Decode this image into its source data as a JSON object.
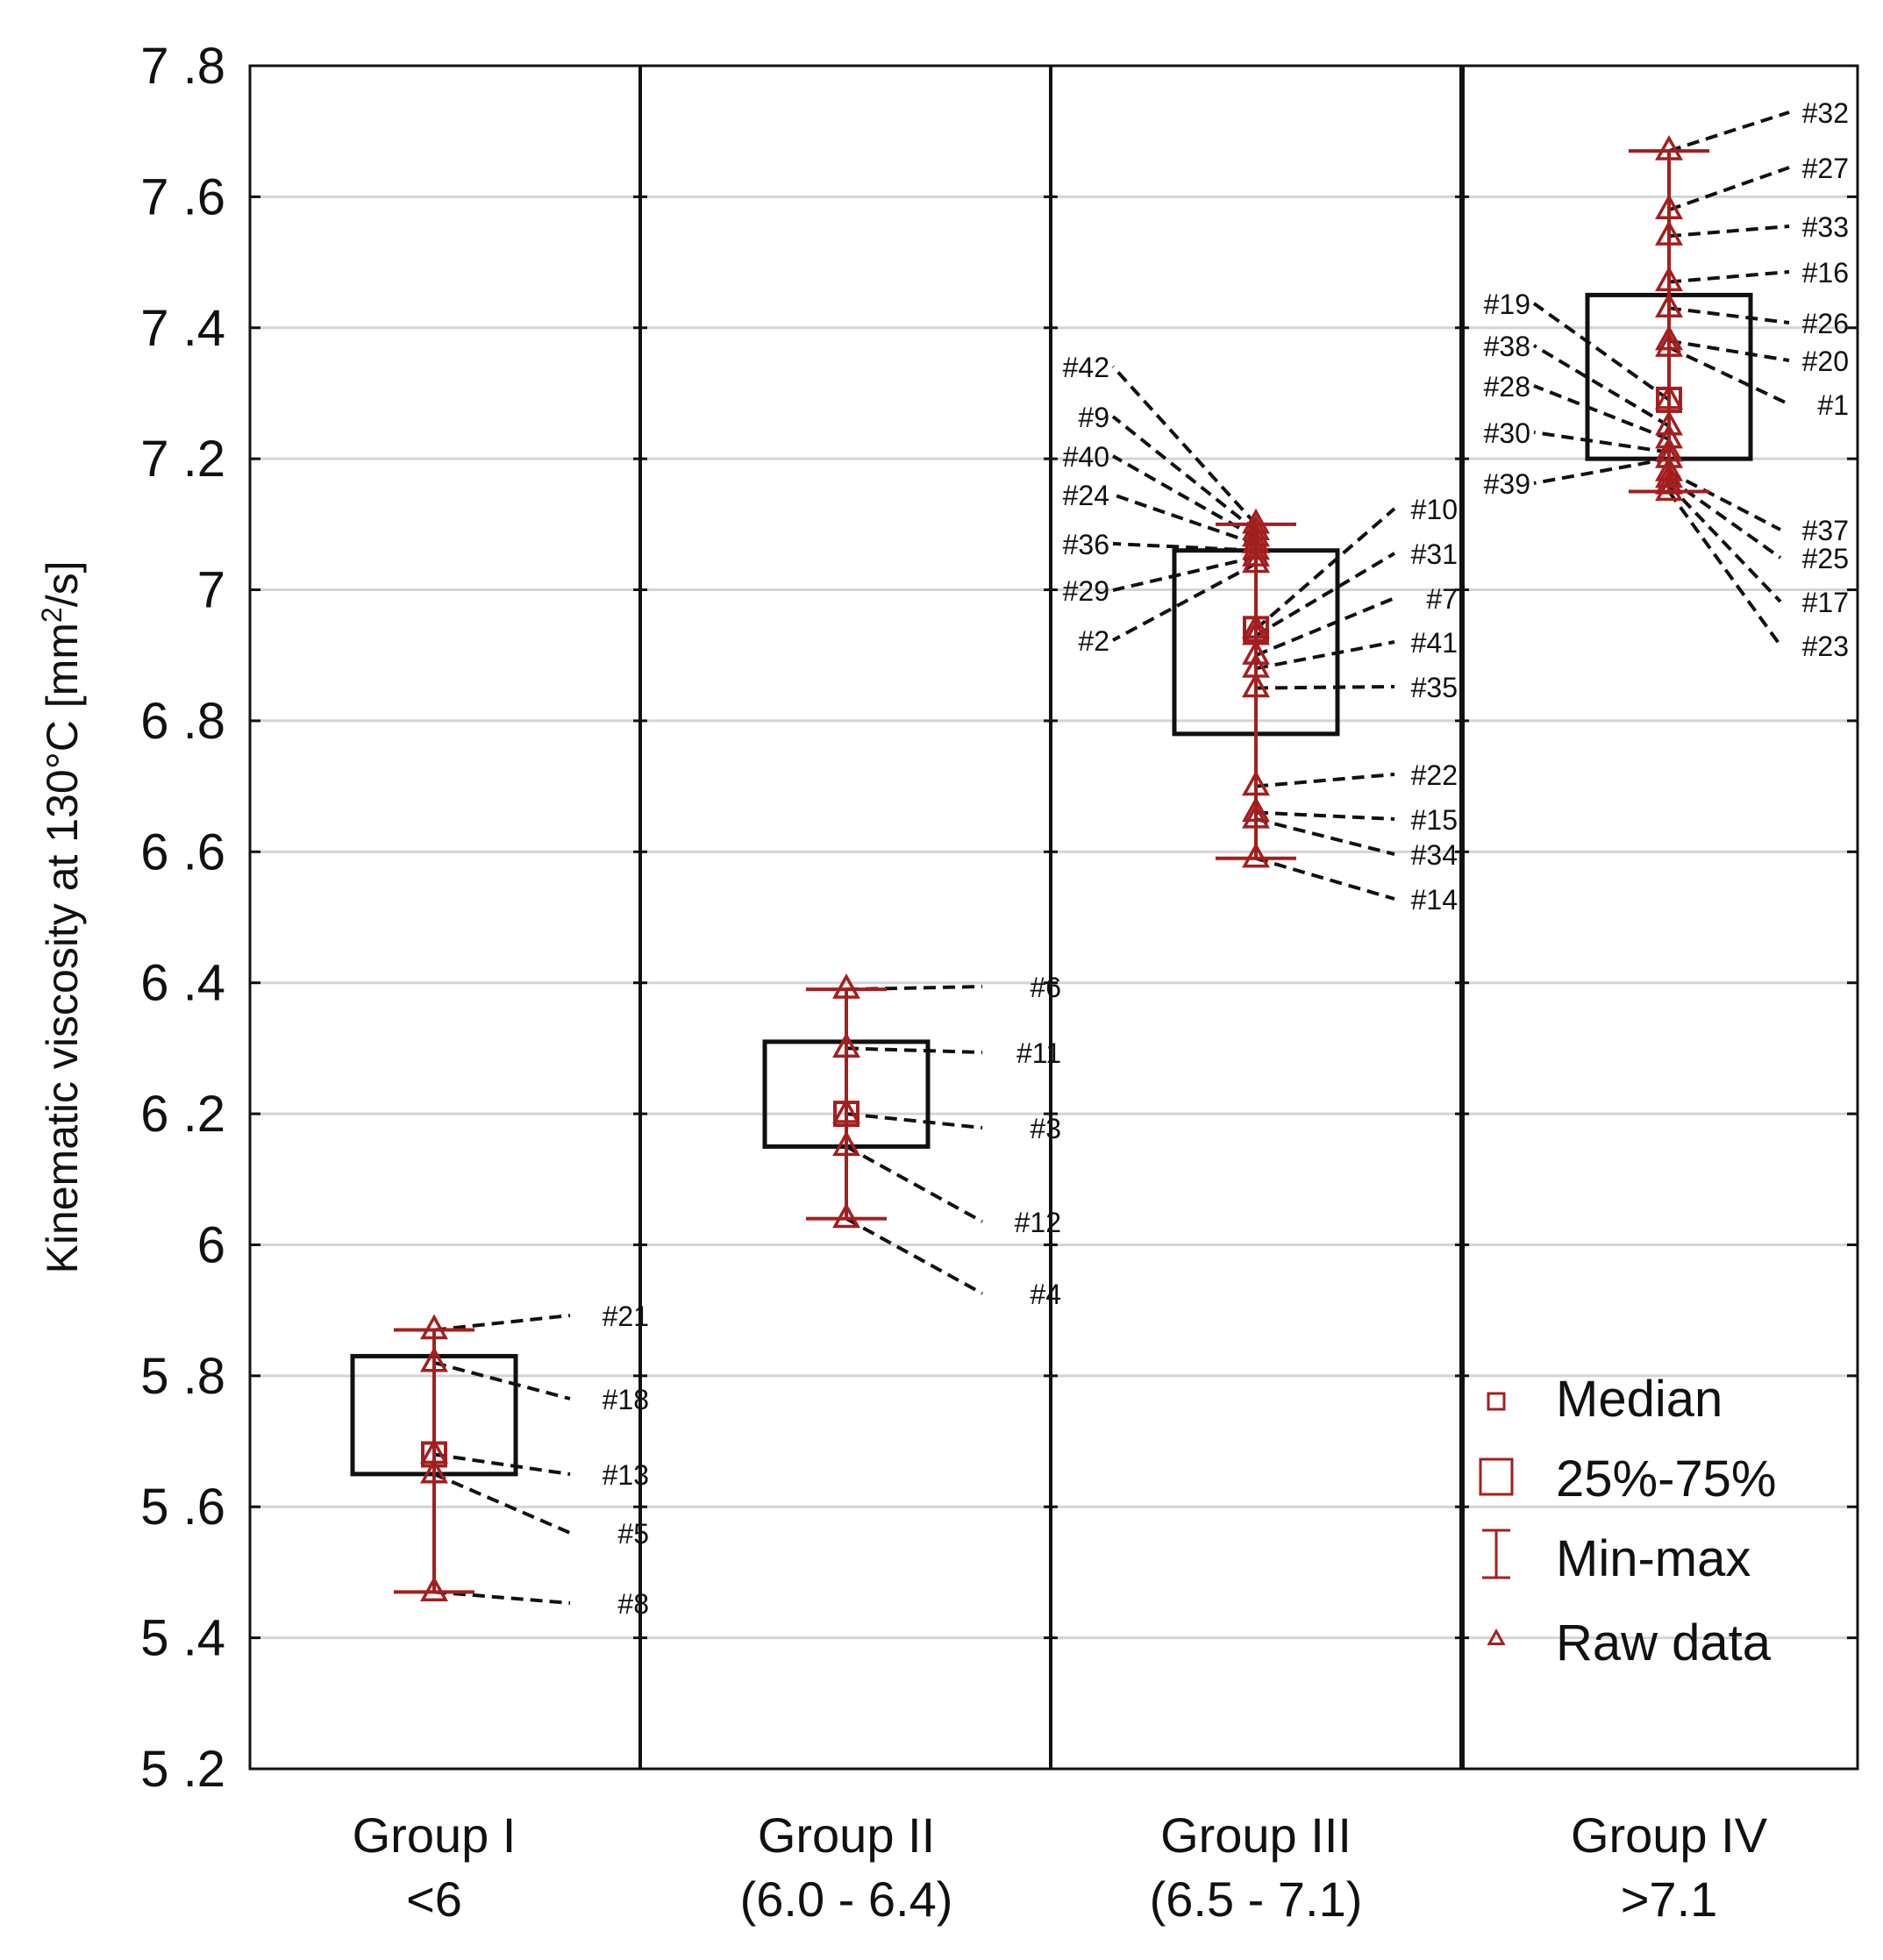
{
  "chart_data": {
    "type": "box",
    "ylabel": "Kinematic viscosity at 130°C [mm²/s]",
    "ylabel_parts": {
      "pre": "Kinematic viscosity at 130°C [mm",
      "sup": "2",
      "post": "/s]"
    },
    "ylim": [
      5.2,
      7.8
    ],
    "yticks": [
      5.2,
      5.4,
      5.6,
      5.8,
      6.0,
      6.2,
      6.4,
      6.6,
      6.8,
      7.0,
      7.2,
      7.4,
      7.6,
      7.8
    ],
    "ytick_labels": [
      "5 .2",
      "5 .4",
      "5 .6",
      "5 .8",
      "6",
      "6 .2",
      "6 .4",
      "6 .6",
      "6 .8",
      "7",
      "7 .2",
      "7 .4",
      "7 .6",
      "7 .8"
    ],
    "grid": true,
    "accent_color": "#a31f1f",
    "legend": {
      "position": "bottom-right",
      "items": [
        {
          "symbol": "small-square",
          "label": "Median"
        },
        {
          "symbol": "large-square",
          "label": "25%-75%"
        },
        {
          "symbol": "whisker",
          "label": "Min-max"
        },
        {
          "symbol": "triangle",
          "label": "Raw data"
        }
      ]
    },
    "groups": [
      {
        "name": "Group I",
        "range_label": "<6",
        "median": 5.68,
        "q1": 5.65,
        "q3": 5.83,
        "min": 5.47,
        "max": 5.87,
        "points": [
          {
            "id": "#21",
            "value": 5.87
          },
          {
            "id": "#18",
            "value": 5.82
          },
          {
            "id": "#13",
            "value": 5.68
          },
          {
            "id": "#5",
            "value": 5.65
          },
          {
            "id": "#8",
            "value": 5.47
          }
        ]
      },
      {
        "name": "Group II",
        "range_label": "(6.0 - 6.4)",
        "median": 6.2,
        "q1": 6.15,
        "q3": 6.31,
        "min": 6.04,
        "max": 6.39,
        "points": [
          {
            "id": "#6",
            "value": 6.39
          },
          {
            "id": "#11",
            "value": 6.3
          },
          {
            "id": "#3",
            "value": 6.2
          },
          {
            "id": "#12",
            "value": 6.15
          },
          {
            "id": "#4",
            "value": 6.04
          }
        ]
      },
      {
        "name": "Group III",
        "range_label": "(6.5 - 7.1)",
        "median": 6.94,
        "q1": 6.78,
        "q3": 7.06,
        "min": 6.59,
        "max": 7.1,
        "points": [
          {
            "id": "#42",
            "value": 7.1
          },
          {
            "id": "#9",
            "value": 7.09
          },
          {
            "id": "#40",
            "value": 7.08
          },
          {
            "id": "#24",
            "value": 7.07
          },
          {
            "id": "#36",
            "value": 7.06
          },
          {
            "id": "#29",
            "value": 7.05
          },
          {
            "id": "#2",
            "value": 7.04
          },
          {
            "id": "#10",
            "value": 6.94
          },
          {
            "id": "#31",
            "value": 6.93
          },
          {
            "id": "#7",
            "value": 6.9
          },
          {
            "id": "#41",
            "value": 6.88
          },
          {
            "id": "#35",
            "value": 6.85
          },
          {
            "id": "#22",
            "value": 6.7
          },
          {
            "id": "#15",
            "value": 6.66
          },
          {
            "id": "#34",
            "value": 6.65
          },
          {
            "id": "#14",
            "value": 6.59
          }
        ]
      },
      {
        "name": "Group IV",
        "range_label": ">7.1",
        "median": 7.29,
        "q1": 7.2,
        "q3": 7.45,
        "min": 7.15,
        "max": 7.67,
        "points": [
          {
            "id": "#32",
            "value": 7.67
          },
          {
            "id": "#27",
            "value": 7.58
          },
          {
            "id": "#33",
            "value": 7.54
          },
          {
            "id": "#16",
            "value": 7.47
          },
          {
            "id": "#26",
            "value": 7.43
          },
          {
            "id": "#20",
            "value": 7.38
          },
          {
            "id": "#1",
            "value": 7.37
          },
          {
            "id": "#19",
            "value": 7.29
          },
          {
            "id": "#38",
            "value": 7.25
          },
          {
            "id": "#28",
            "value": 7.23
          },
          {
            "id": "#30",
            "value": 7.21
          },
          {
            "id": "#39",
            "value": 7.2
          },
          {
            "id": "#37",
            "value": 7.18
          },
          {
            "id": "#25",
            "value": 7.17
          },
          {
            "id": "#17",
            "value": 7.16
          },
          {
            "id": "#23",
            "value": 7.15
          }
        ]
      }
    ]
  }
}
